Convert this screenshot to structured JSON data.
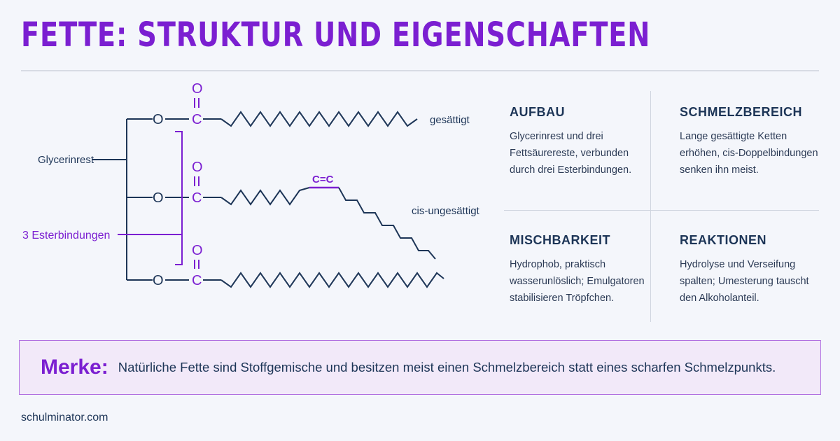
{
  "title": "FETTE: STRUKTUR UND EIGENSCHAFTEN",
  "diagram": {
    "glycerol_label": "Glycerinrest",
    "ester_label": "3 Esterbindungen",
    "oxygen": "O",
    "carbon": "C",
    "double_bond": "C=C",
    "chain_labels": [
      "gesättigt",
      "cis-ungesättigt"
    ]
  },
  "properties": [
    {
      "heading": "AUFBAU",
      "text": "Glycerinrest und drei Fettsäurereste, verbunden durch drei Esterbindungen."
    },
    {
      "heading": "SCHMELZBEREICH",
      "text": "Lange gesättigte Ketten erhöhen, cis-Doppelbindungen senken ihn meist."
    },
    {
      "heading": "MISCHBARKEIT",
      "text": "Hydrophob, praktisch wasserunlöslich; Emulgatoren stabilisieren Tröpfchen."
    },
    {
      "heading": "REAKTIONEN",
      "text": "Hydrolyse und Verseifung spalten; Umesterung tauscht den Alkoholanteil."
    }
  ],
  "note": {
    "label": "Merke:",
    "text": "Natürliche Fette sind Stoffgemische und besitzen meist einen Schmelzbereich statt eines scharfen Schmelzpunkts."
  },
  "footer": "schulminator.com",
  "colors": {
    "accent": "#7b1fd1",
    "text": "#1d3557",
    "note_bg": "#f2e9f9"
  }
}
